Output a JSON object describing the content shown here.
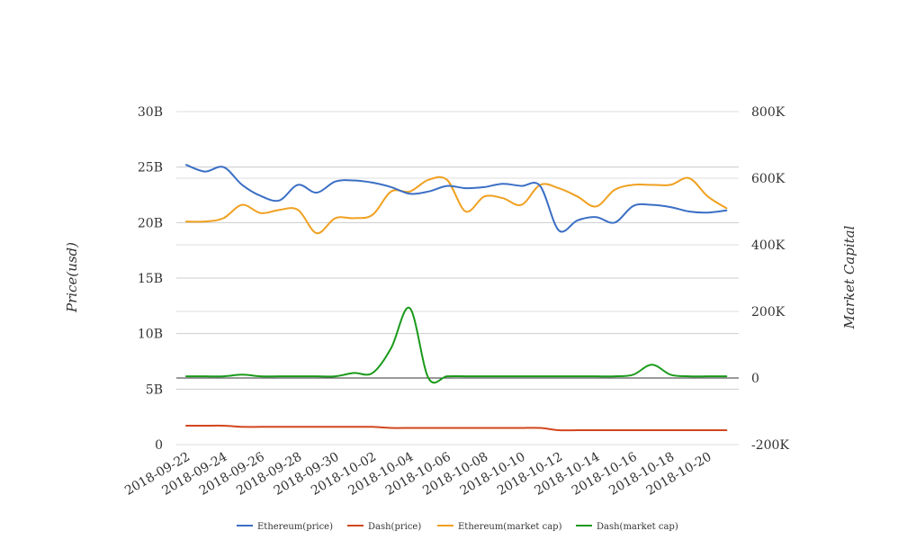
{
  "chart_data": {
    "type": "line",
    "x_ticks": [
      "2018-09-22",
      "2018-09-24",
      "2018-09-26",
      "2018-09-28",
      "2018-09-30",
      "2018-10-02",
      "2018-10-04",
      "2018-10-06",
      "2018-10-08",
      "2018-10-10",
      "2018-10-12",
      "2018-10-14",
      "2018-10-16",
      "2018-10-18",
      "2018-10-20"
    ],
    "x_start": "2018-09-22",
    "x_end": "2018-10-21",
    "left_axis": {
      "label": "Price(usd)",
      "ticks": [
        0,
        5,
        10,
        15,
        20,
        25,
        30
      ],
      "tick_labels": [
        "0",
        "5B",
        "10B",
        "15B",
        "20B",
        "25B",
        "30B"
      ],
      "range": [
        0,
        30
      ]
    },
    "right_axis": {
      "label": "Market Capital",
      "ticks": [
        -200,
        0,
        200,
        400,
        600,
        800
      ],
      "tick_labels": [
        "-200K",
        "0",
        "200K",
        "400K",
        "600K",
        "800K"
      ],
      "range": [
        -200,
        800
      ]
    },
    "series": [
      {
        "name": "Ethereum(price)",
        "axis": "left",
        "color": "#3b6fc4",
        "values": [
          25.2,
          24.6,
          25.0,
          23.4,
          22.4,
          22.0,
          23.4,
          22.7,
          23.7,
          23.8,
          23.6,
          23.2,
          22.6,
          22.8,
          23.3,
          23.1,
          23.2,
          23.5,
          23.3,
          23.3,
          19.3,
          20.2,
          20.5,
          20.0,
          21.5,
          21.6,
          21.4,
          21.0,
          20.9,
          21.1
        ]
      },
      {
        "name": "Dash(price)",
        "axis": "left",
        "color": "#d2461e",
        "values": [
          1.7,
          1.7,
          1.7,
          1.6,
          1.6,
          1.6,
          1.6,
          1.6,
          1.6,
          1.6,
          1.6,
          1.5,
          1.5,
          1.5,
          1.5,
          1.5,
          1.5,
          1.5,
          1.5,
          1.5,
          1.3,
          1.3,
          1.3,
          1.3,
          1.3,
          1.3,
          1.3,
          1.3,
          1.3,
          1.3
        ]
      },
      {
        "name": "Ethereum(market cap)",
        "axis": "right",
        "color": "#f0a020",
        "values": [
          470,
          470,
          480,
          520,
          495,
          505,
          505,
          435,
          480,
          480,
          490,
          560,
          560,
          595,
          595,
          500,
          545,
          540,
          520,
          580,
          570,
          545,
          515,
          565,
          580,
          580,
          580,
          600,
          545,
          510
        ]
      },
      {
        "name": "Dash(market cap)",
        "axis": "right",
        "color": "#1a9a1a",
        "values": [
          5,
          5,
          5,
          10,
          5,
          5,
          5,
          5,
          5,
          15,
          15,
          90,
          210,
          0,
          5,
          5,
          5,
          5,
          5,
          5,
          5,
          5,
          5,
          5,
          10,
          40,
          10,
          5,
          5,
          5
        ]
      }
    ],
    "legend": [
      "Ethereum(price)",
      "Dash(price)",
      "Ethereum(market cap)",
      "Dash(market cap)"
    ],
    "legend_position": "bottom",
    "grid": true
  }
}
